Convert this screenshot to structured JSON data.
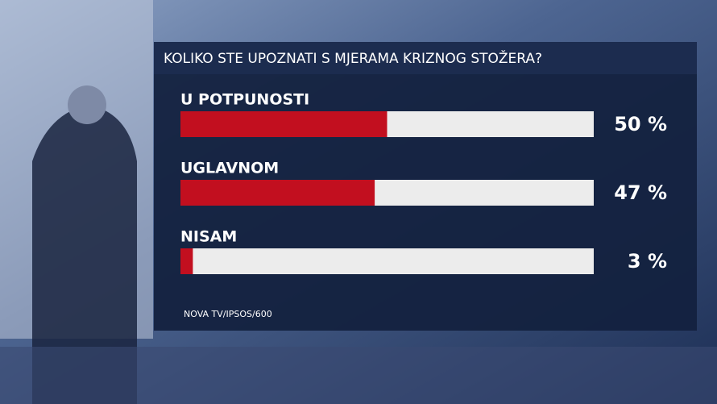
{
  "chart_data": {
    "type": "bar",
    "orientation": "horizontal",
    "title": "KOLIKO STE UPOZNATI S MJERAMA KRIZNOG STOŽERA?",
    "categories": [
      "U POTPUNOSTI",
      "UGLAVNOM",
      "NISAM"
    ],
    "values": [
      50,
      47,
      3
    ],
    "value_labels": [
      "50 %",
      "47 %",
      "3 %"
    ],
    "color": "#c20f1f",
    "xlim": [
      0,
      100
    ],
    "source": "NOVA TV/IPSOS/600"
  }
}
